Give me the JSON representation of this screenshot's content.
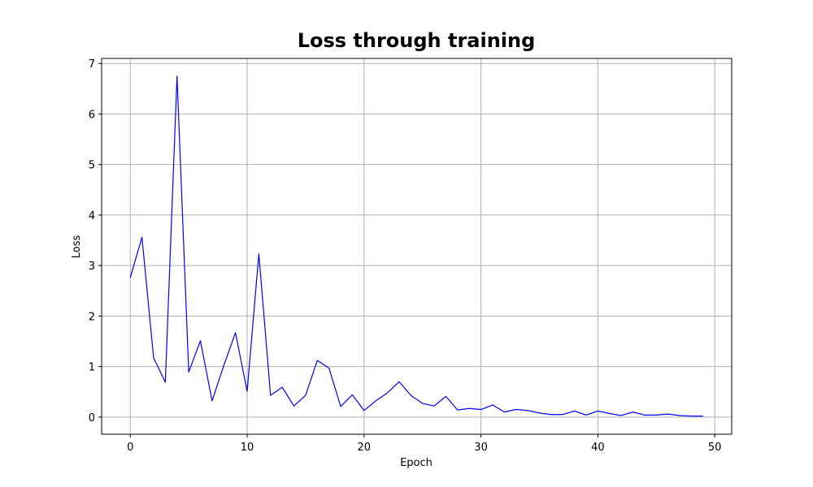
{
  "chart_data": {
    "type": "line",
    "title": "Loss through training",
    "xlabel": "Epoch",
    "ylabel": "Loss",
    "xlim": [
      -2.45,
      51.45
    ],
    "ylim": [
      -0.34,
      7.1
    ],
    "xticks": [
      0,
      10,
      20,
      30,
      40,
      50
    ],
    "yticks": [
      0,
      1,
      2,
      3,
      4,
      5,
      6,
      7
    ],
    "grid": true,
    "legend": "none",
    "series": [
      {
        "color": "#0000ff",
        "x": [
          0,
          1,
          2,
          3,
          4,
          5,
          6,
          7,
          8,
          9,
          10,
          11,
          12,
          13,
          14,
          15,
          16,
          17,
          18,
          19,
          20,
          21,
          22,
          23,
          24,
          25,
          26,
          27,
          28,
          29,
          30,
          31,
          32,
          33,
          34,
          35,
          36,
          37,
          38,
          39,
          40,
          41,
          42,
          43,
          44,
          45,
          46,
          47,
          48,
          49
        ],
        "y": [
          2.76,
          3.56,
          1.17,
          0.69,
          6.75,
          0.89,
          1.51,
          0.32,
          1.02,
          1.67,
          0.51,
          3.23,
          0.43,
          0.59,
          0.22,
          0.43,
          1.12,
          0.97,
          0.21,
          0.44,
          0.13,
          0.32,
          0.48,
          0.7,
          0.43,
          0.27,
          0.22,
          0.41,
          0.14,
          0.17,
          0.15,
          0.24,
          0.1,
          0.15,
          0.13,
          0.08,
          0.05,
          0.05,
          0.12,
          0.04,
          0.12,
          0.07,
          0.03,
          0.1,
          0.04,
          0.04,
          0.06,
          0.03,
          0.02,
          0.02
        ]
      }
    ]
  }
}
